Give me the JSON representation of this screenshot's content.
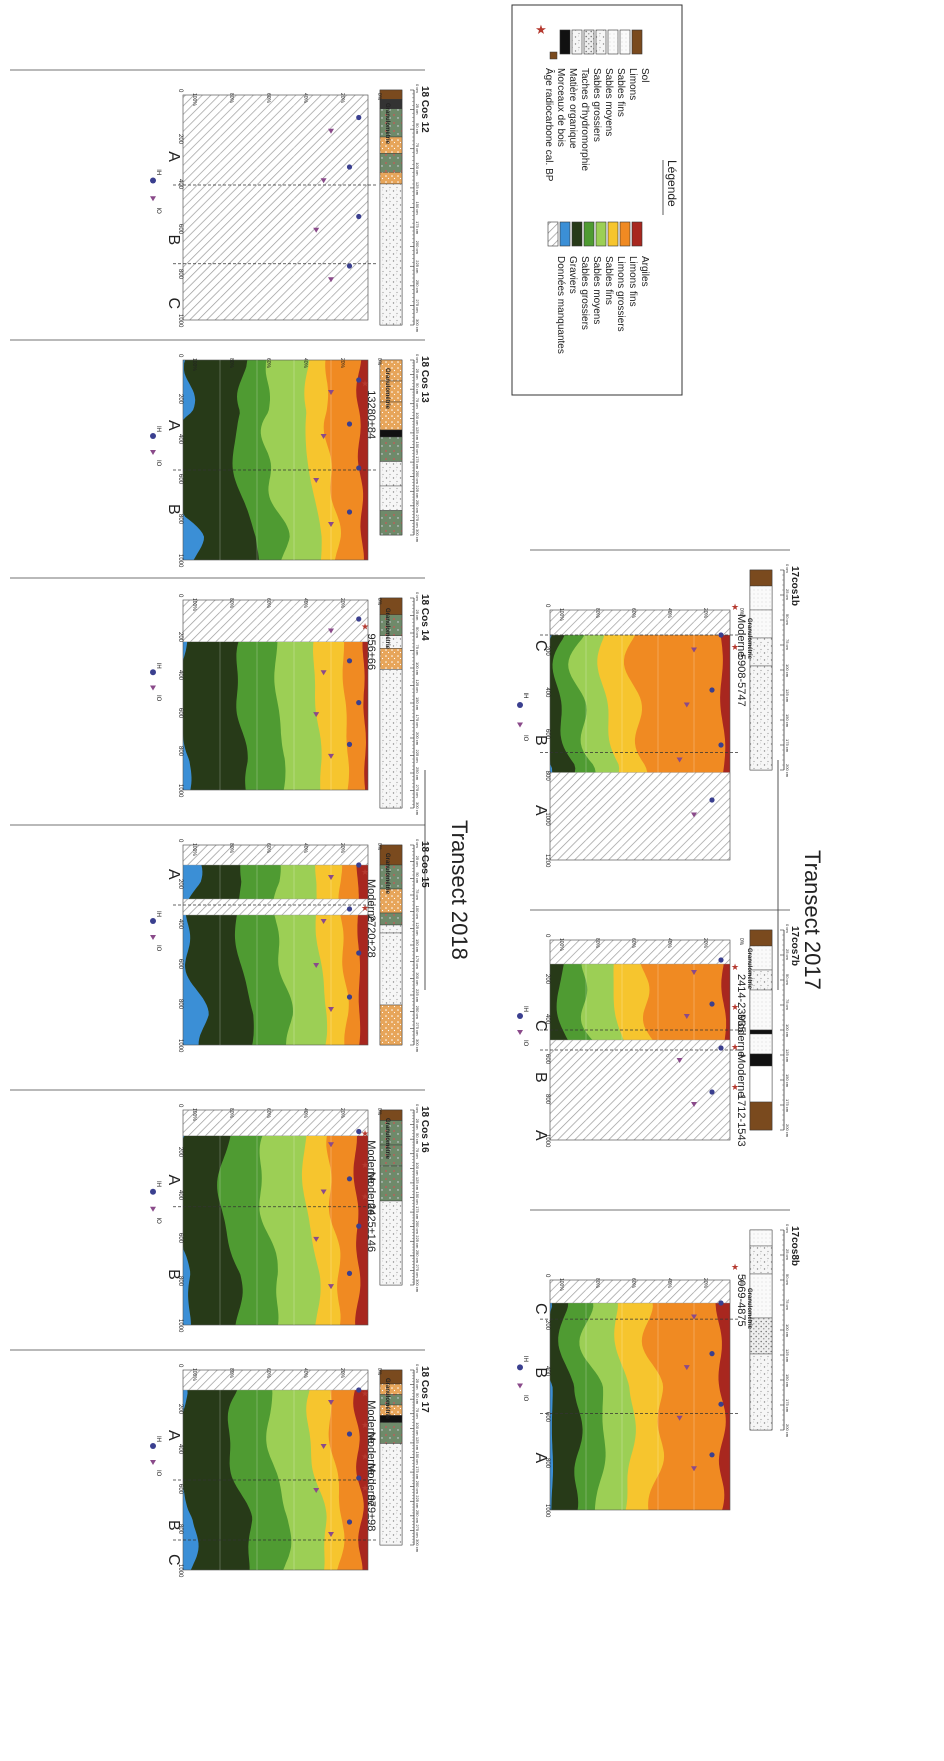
{
  "transects": [
    {
      "id": "t2018",
      "title": "Transect 2018"
    },
    {
      "id": "t2017",
      "title": "Transect 2017"
    }
  ],
  "legend": {
    "title": "Légende",
    "left_items": [
      {
        "label": "Sol",
        "swatch": "soil"
      },
      {
        "label": "Limons",
        "swatch": "silt"
      },
      {
        "label": "Sables fins",
        "swatch": "fine"
      },
      {
        "label": "Sables moyens",
        "swatch": "medium"
      },
      {
        "label": "Sables grossiers",
        "swatch": "coarse"
      },
      {
        "label": "Taches d'hydromorphie",
        "swatch": "hydro"
      },
      {
        "label": "Matière organique",
        "swatch": "organic"
      },
      {
        "label": "Morceaux de bois",
        "swatch": "wood"
      },
      {
        "label": "Âge radiocarbone cal. BP",
        "swatch": "star"
      }
    ],
    "right_items": [
      {
        "label": "Argiles",
        "color": "#a8271f"
      },
      {
        "label": "Limons fins",
        "color": "#f08a22"
      },
      {
        "label": "Limons grossiers",
        "color": "#f6c52e"
      },
      {
        "label": "Sables fins",
        "color": "#9ccf55"
      },
      {
        "label": "Sables moyens",
        "color": "#4f9b32"
      },
      {
        "label": "Sables grossiers",
        "color": "#273a18"
      },
      {
        "label": "Graviers",
        "color": "#3b8fd6"
      },
      {
        "label": "Données manquantes",
        "color": "hatch"
      }
    ]
  },
  "core_depth_ticks": [
    "0 cm",
    "25 cm",
    "50 cm",
    "75 cm",
    "100 cm",
    "125 cm",
    "150 cm",
    "175 cm",
    "200 cm",
    "225 cm",
    "250 cm",
    "275 cm",
    "300 cm"
  ],
  "graph_axis_label": "Granulométrie",
  "graph_pct_ticks": [
    "0%",
    "20%",
    "40%",
    "60%",
    "80%",
    "100%"
  ],
  "graph_depth_ticks": [
    "0",
    "200",
    "400",
    "600",
    "800",
    "1000"
  ],
  "graph_depth_ticks_17cos1b": [
    "0",
    "200",
    "400",
    "600",
    "800",
    "1000",
    "1200"
  ],
  "marker_legend": [
    "IH",
    "IO"
  ],
  "cores_2018": [
    {
      "id": "c12",
      "name": "18 Cos 12",
      "units": [
        "A",
        "B",
        "C"
      ],
      "dates": []
    },
    {
      "id": "c13",
      "name": "18 Cos 13",
      "units": [
        "A",
        "B"
      ],
      "dates": [
        "13280±84"
      ]
    },
    {
      "id": "c14",
      "name": "18 Cos 14",
      "units": [],
      "dates": [
        "956±66"
      ]
    },
    {
      "id": "c15",
      "name": "18 Cos 15",
      "units": [
        "A"
      ],
      "dates": [
        "Moderne",
        "2720±28"
      ]
    },
    {
      "id": "c16",
      "name": "18 Cos 16",
      "units": [
        "A",
        "B"
      ],
      "dates": [
        "Moderne",
        "Moderne",
        "2425±146"
      ]
    },
    {
      "id": "c17",
      "name": "18 Cos 17",
      "units": [
        "A",
        "B",
        "C"
      ],
      "dates": [
        "Moderne",
        "Moderne",
        "Moderne",
        "979±98"
      ]
    }
  ],
  "cores_2017": [
    {
      "id": "c1b",
      "name": "17cos1b",
      "units": [
        "A",
        "B",
        "C"
      ],
      "dates": [
        "Moderne",
        "5908-5747"
      ]
    },
    {
      "id": "c7b",
      "name": "17cos7b",
      "units": [
        "A",
        "B",
        "C"
      ],
      "dates": [
        "2414-23935",
        "Moderne",
        "Moderne",
        "1712-1543"
      ]
    },
    {
      "id": "c8b",
      "name": "17cos8b",
      "units": [
        "A",
        "B",
        "C"
      ],
      "dates": [
        "5069-4875"
      ]
    }
  ],
  "colors": {
    "clay": "#a8271f",
    "fine_silt": "#f08a22",
    "coarse_silt": "#f6c52e",
    "fine_sand": "#9ccf55",
    "medium_sand": "#4f9b32",
    "coarse_sand": "#273a18",
    "gravel": "#3b8fd6",
    "soil": "#7a4a1e",
    "star": "#b5392f",
    "ih": "#3a3f8f",
    "io": "#8a4a8a"
  }
}
